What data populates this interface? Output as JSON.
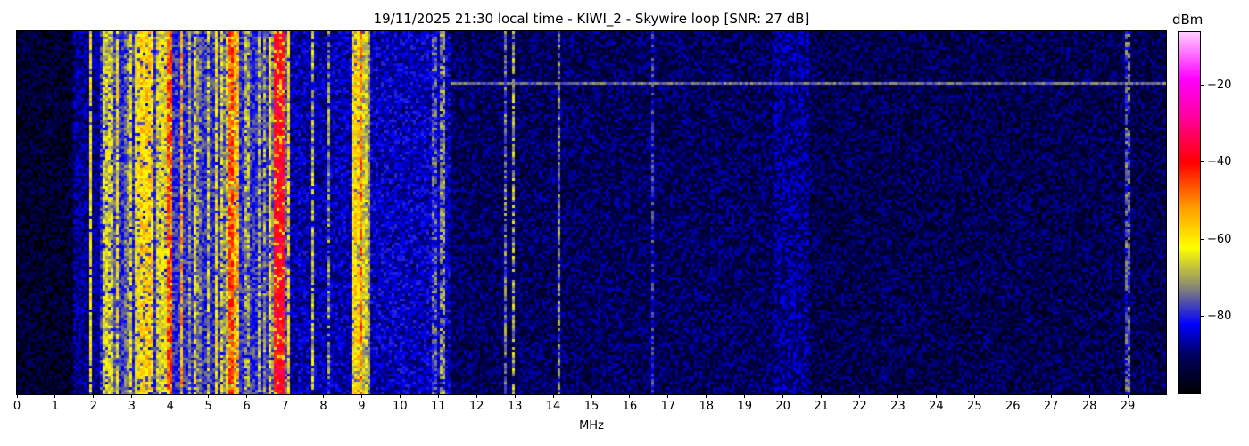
{
  "chart_data": {
    "type": "heatmap",
    "title": "19/11/2025 21:30 local time - KIWI_2 - Skywire loop [SNR: 27 dB]",
    "xlabel": "MHz",
    "ylabel": "",
    "xlim": [
      0,
      30
    ],
    "xticks": [
      "0",
      "1",
      "2",
      "3",
      "4",
      "5",
      "6",
      "7",
      "8",
      "9",
      "10",
      "11",
      "12",
      "13",
      "14",
      "15",
      "16",
      "17",
      "18",
      "19",
      "20",
      "21",
      "22",
      "23",
      "24",
      "25",
      "26",
      "27",
      "28",
      "29"
    ],
    "colorbar": {
      "label": "dBm",
      "range": [
        -100,
        -6
      ],
      "ticks": [
        "−20",
        "−40",
        "−60",
        "−80"
      ],
      "tick_values": [
        -20,
        -40,
        -60,
        -80
      ],
      "colormap": [
        {
          "v": -100,
          "color": "#000000"
        },
        {
          "v": -90,
          "color": "#000060"
        },
        {
          "v": -82,
          "color": "#0000ff"
        },
        {
          "v": -72,
          "color": "#8c8c70"
        },
        {
          "v": -62,
          "color": "#ffff00"
        },
        {
          "v": -52,
          "color": "#ffa000"
        },
        {
          "v": -40,
          "color": "#ff0000"
        },
        {
          "v": -28,
          "color": "#ff00a0"
        },
        {
          "v": -18,
          "color": "#ff00ff"
        },
        {
          "v": -6,
          "color": "#ffd0ff"
        }
      ]
    },
    "noise_floor": [
      {
        "from": 0,
        "to": 1.5,
        "dbm": -95
      },
      {
        "from": 1.5,
        "to": 2.2,
        "dbm": -88
      },
      {
        "from": 2.2,
        "to": 7.1,
        "dbm": -79
      },
      {
        "from": 7.1,
        "to": 8.7,
        "dbm": -86
      },
      {
        "from": 8.7,
        "to": 9.25,
        "dbm": -72
      },
      {
        "from": 9.25,
        "to": 11.3,
        "dbm": -85
      },
      {
        "from": 11.3,
        "to": 19.8,
        "dbm": -91
      },
      {
        "from": 19.8,
        "to": 20.7,
        "dbm": -88
      },
      {
        "from": 20.7,
        "to": 30,
        "dbm": -92
      }
    ],
    "signals": [
      {
        "mhz": 1.93,
        "width": 0.05,
        "dbm": -62
      },
      {
        "mhz": 2.4,
        "width": 0.25,
        "dbm": -66
      },
      {
        "mhz": 2.6,
        "width": 0.05,
        "dbm": -62
      },
      {
        "mhz": 3.15,
        "width": 0.15,
        "dbm": -62
      },
      {
        "mhz": 3.4,
        "width": 0.35,
        "dbm": -58
      },
      {
        "mhz": 3.75,
        "width": 0.2,
        "dbm": -64
      },
      {
        "mhz": 4.0,
        "width": 0.08,
        "dbm": -45
      },
      {
        "mhz": 4.3,
        "width": 0.06,
        "dbm": -52
      },
      {
        "mhz": 4.62,
        "width": 0.04,
        "dbm": -62
      },
      {
        "mhz": 5.2,
        "width": 0.04,
        "dbm": -62
      },
      {
        "mhz": 5.62,
        "width": 0.1,
        "dbm": -45
      },
      {
        "mhz": 5.72,
        "width": 0.08,
        "dbm": -55
      },
      {
        "mhz": 6.0,
        "width": 0.1,
        "dbm": -70
      },
      {
        "mhz": 6.6,
        "width": 0.08,
        "dbm": -62
      },
      {
        "mhz": 6.85,
        "width": 0.22,
        "dbm": -38
      },
      {
        "mhz": 7.08,
        "width": 0.04,
        "dbm": -62
      },
      {
        "mhz": 7.7,
        "width": 0.04,
        "dbm": -68
      },
      {
        "mhz": 8.15,
        "width": 0.04,
        "dbm": -72
      },
      {
        "mhz": 8.75,
        "width": 0.05,
        "dbm": -60
      },
      {
        "mhz": 8.87,
        "width": 0.05,
        "dbm": -58
      },
      {
        "mhz": 8.97,
        "width": 0.05,
        "dbm": -48
      },
      {
        "mhz": 9.1,
        "width": 0.1,
        "dbm": -66
      },
      {
        "mhz": 10.9,
        "width": 0.05,
        "dbm": -76
      },
      {
        "mhz": 11.1,
        "width": 0.1,
        "dbm": -72
      },
      {
        "mhz": 12.75,
        "width": 0.03,
        "dbm": -74
      },
      {
        "mhz": 12.95,
        "width": 0.03,
        "dbm": -70
      },
      {
        "mhz": 14.15,
        "width": 0.04,
        "dbm": -74
      },
      {
        "mhz": 16.6,
        "width": 0.04,
        "dbm": -80
      },
      {
        "mhz": 29.0,
        "width": 0.04,
        "dbm": -76
      }
    ],
    "horizontal_trace": {
      "from": 11.3,
      "to": 30,
      "row_fraction_from_top": 0.14,
      "dbm": -74
    }
  }
}
